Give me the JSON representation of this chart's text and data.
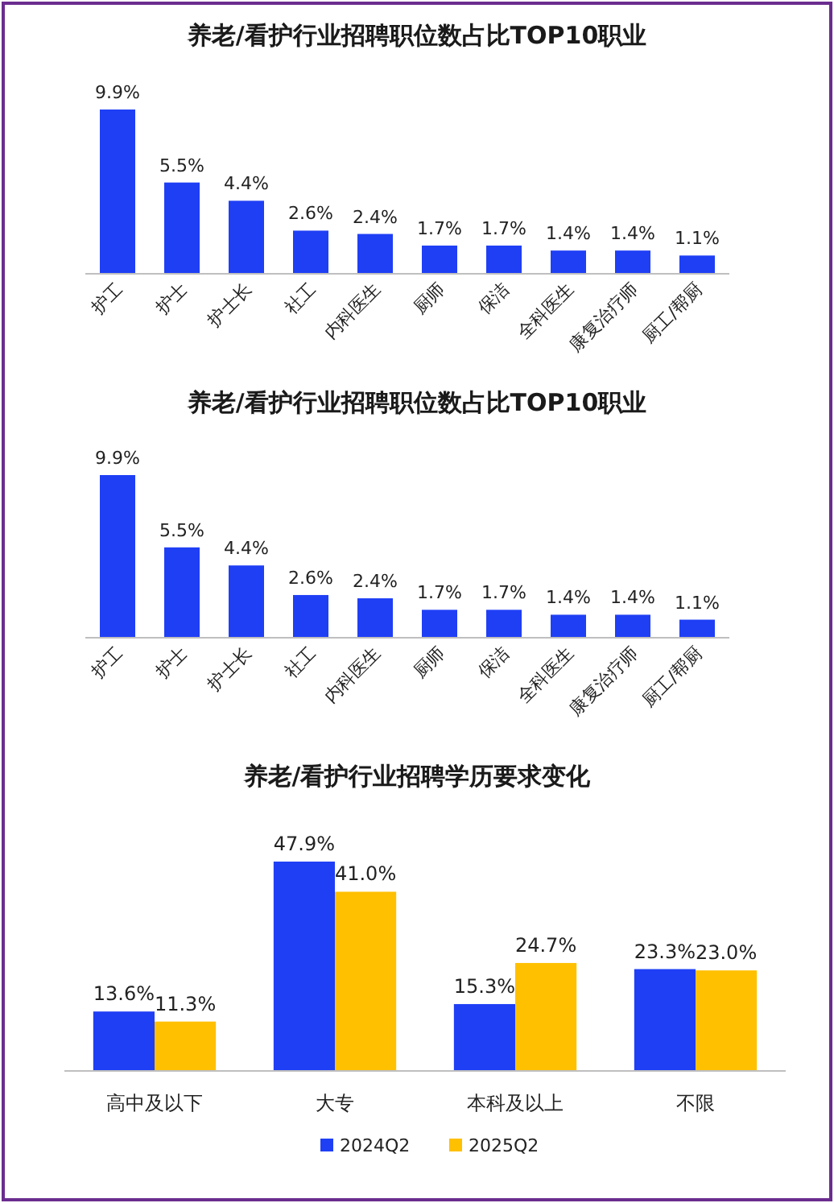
{
  "chart_data": [
    {
      "type": "bar",
      "title": "养老/看护行业招聘职位数占比TOP10职业",
      "categories": [
        "护工",
        "护士",
        "护士长",
        "社工",
        "内科医生",
        "厨师",
        "保洁",
        "全科医生",
        "康复治疗师",
        "厨工/帮厨"
      ],
      "values": [
        9.9,
        5.5,
        4.4,
        2.6,
        2.4,
        1.7,
        1.7,
        1.4,
        1.4,
        1.1
      ],
      "value_labels": [
        "9.9%",
        "5.5%",
        "4.4%",
        "2.6%",
        "2.4%",
        "1.7%",
        "1.7%",
        "1.4%",
        "1.4%",
        "1.1%"
      ],
      "color": "#1f3ff5"
    },
    {
      "type": "bar",
      "title": "养老/看护行业招聘职位数占比TOP10职业",
      "categories": [
        "护工",
        "护士",
        "护士长",
        "社工",
        "内科医生",
        "厨师",
        "保洁",
        "全科医生",
        "康复治疗师",
        "厨工/帮厨"
      ],
      "values": [
        9.9,
        5.5,
        4.4,
        2.6,
        2.4,
        1.7,
        1.7,
        1.4,
        1.4,
        1.1
      ],
      "value_labels": [
        "9.9%",
        "5.5%",
        "4.4%",
        "2.6%",
        "2.4%",
        "1.7%",
        "1.7%",
        "1.4%",
        "1.4%",
        "1.1%"
      ],
      "color": "#1f3ff5"
    },
    {
      "type": "bar",
      "title": "养老/看护行业招聘学历要求变化",
      "categories": [
        "高中及以下",
        "大专",
        "本科及以上",
        "不限"
      ],
      "legend": "bottom",
      "series": [
        {
          "name": "2024Q2",
          "color": "#1f3ff5",
          "values": [
            13.6,
            47.9,
            15.3,
            23.3
          ],
          "value_labels": [
            "13.6%",
            "47.9%",
            "15.3%",
            "23.3%"
          ]
        },
        {
          "name": "2025Q2",
          "color": "#ffc000",
          "values": [
            11.3,
            41.0,
            24.7,
            23.0
          ],
          "value_labels": [
            "11.3%",
            "41.0%",
            "24.7%",
            "23.0%"
          ]
        }
      ]
    }
  ]
}
